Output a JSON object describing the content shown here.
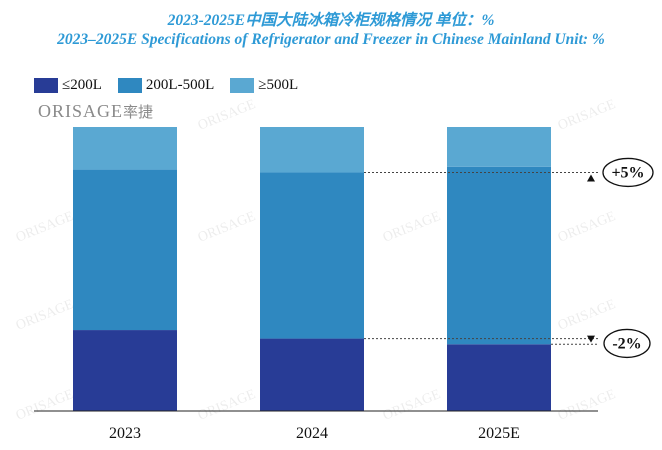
{
  "title_cn": "2023-2025E中国大陆冰箱冷柜规格情况 单位：%",
  "title_en": "2023–2025E Specifications of Refrigerator and Freezer in Chinese Mainland  Unit: %",
  "logo": {
    "brand": "ORISAGE",
    "cn": "率捷"
  },
  "colors": {
    "small": "#283c96",
    "mid": "#2f88c0",
    "large": "#5aa8d2",
    "title": "#2e9ad6"
  },
  "chart_data": {
    "type": "bar",
    "stacked": true,
    "categories": [
      "2023",
      "2024",
      "2025E"
    ],
    "series": [
      {
        "name": "≤200L",
        "values": [
          28.5,
          25.5,
          23.5
        ]
      },
      {
        "name": "200L-500L",
        "values": [
          56.5,
          58.5,
          62.5
        ]
      },
      {
        "name": "≥500L",
        "values": [
          15,
          16,
          14
        ]
      }
    ],
    "ylim": [
      0,
      100
    ],
    "legend": "top-left",
    "grid": false,
    "annotations": [
      {
        "label": "+5%",
        "marker": "up"
      },
      {
        "label": "-2%",
        "marker": "down"
      }
    ]
  }
}
